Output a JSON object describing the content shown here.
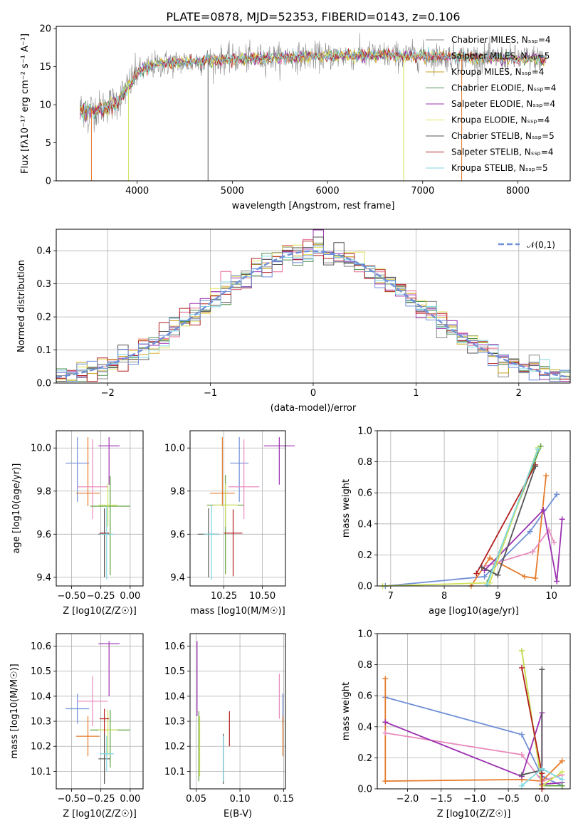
{
  "figure": {
    "title": "PLATE=0878, MJD=52353, FIBERID=0143, z=0.106"
  },
  "chart_data": [
    {
      "type": "line",
      "panel": "spectrum",
      "xlabel": "wavelength [Angstrom, rest frame]",
      "ylabel": "Flux [fλ10⁻¹⁷ erg cm⁻² s⁻¹ A⁻¹]",
      "xlim": [
        3150,
        8550
      ],
      "ylim": [
        0,
        20.3
      ],
      "xticks": [
        4000,
        5000,
        6000,
        7000,
        8000
      ],
      "yticks": [
        0,
        5,
        10,
        15,
        20
      ],
      "legend_position": "right",
      "series": [
        {
          "name": "Chabrier MILES, N_SSP=4",
          "color": "#888888"
        },
        {
          "name": "Salpeter MILES, N_SSP=5",
          "color": "#e96c93"
        },
        {
          "name": "Kroupa MILES, N_SSP=4",
          "color": "#c8a21c"
        },
        {
          "name": "Chabrier ELODIE, N_SSP=4",
          "color": "#4f8f4f"
        },
        {
          "name": "Salpeter ELODIE, N_SSP=4",
          "color": "#9b30b0"
        },
        {
          "name": "Kroupa ELODIE, N_SSP=4",
          "color": "#e2e25a"
        },
        {
          "name": "Chabrier STELIB, N_SSP=5",
          "color": "#555555"
        },
        {
          "name": "Salpeter STELIB, N_SSP=4",
          "color": "#b21f1f"
        },
        {
          "name": "Kroupa STELIB, N_SSP=5",
          "color": "#7fd7e2"
        }
      ],
      "approx_continuum": {
        "x": [
          3400,
          3600,
          3800,
          4000,
          4200,
          4500,
          5000,
          5500,
          6000,
          6500,
          7000,
          7500,
          8000,
          8300
        ],
        "y": [
          9.5,
          9.5,
          10.5,
          14.2,
          15.3,
          15.6,
          16.0,
          16.2,
          16.4,
          16.5,
          16.4,
          16.2,
          16.0,
          16.1
        ]
      }
    },
    {
      "type": "histogram",
      "panel": "residuals",
      "xlabel": "(data-model)/error",
      "ylabel": "Normed distribution",
      "xlim": [
        -2.5,
        2.5
      ],
      "ylim": [
        0,
        0.465
      ],
      "xticks": [
        -2,
        -1,
        0,
        1,
        2
      ],
      "yticks": [
        0.0,
        0.1,
        0.2,
        0.3,
        0.4
      ],
      "legend": [
        "𝒩(0,1)"
      ],
      "grid": true,
      "reference_curve": {
        "name": "𝒩(0,1)",
        "mean": 0,
        "sigma": 1,
        "color": "#6f8fd8"
      }
    },
    {
      "type": "scatter",
      "panel": "age-vs-Z",
      "xlabel": "Z [log10(Z/Z☉)]",
      "ylabel": "age  [log10(age/yr)]",
      "xlim": [
        -0.63,
        0.11
      ],
      "ylim": [
        9.36,
        10.08
      ],
      "xticks": [
        -0.5,
        -0.25,
        0.0
      ],
      "yticks": [
        9.4,
        9.6,
        9.8,
        10.0
      ],
      "grid": true,
      "points": [
        {
          "x": -0.45,
          "xerr": 0.1,
          "y": 9.93,
          "yerr_lo": 0.18,
          "yerr_hi": 0.12,
          "color": "#6f8fd8"
        },
        {
          "x": -0.36,
          "xerr": 0.1,
          "y": 9.79,
          "yerr_lo": 0.06,
          "yerr_hi": 0.26,
          "color": "#e57a2a"
        },
        {
          "x": -0.32,
          "xerr": 0.13,
          "y": 9.82,
          "yerr_lo": 0.15,
          "yerr_hi": 0.22,
          "color": "#e88bbd"
        },
        {
          "x": -0.18,
          "xerr": 0.09,
          "y": 10.01,
          "yerr_lo": 0.18,
          "yerr_hi": 0.04,
          "color": "#9b30b0"
        },
        {
          "x": -0.17,
          "xerr": 0.17,
          "y": 9.73,
          "yerr_lo": 0.32,
          "yerr_hi": 0.14,
          "color": "#5fa03a"
        },
        {
          "x": -0.19,
          "xerr": 0.08,
          "y": 9.735,
          "yerr_lo": 0.1,
          "yerr_hi": 0.1,
          "color": "#cfe25a"
        },
        {
          "x": -0.22,
          "xerr": 0.04,
          "y": 9.605,
          "yerr_lo": 0.2,
          "yerr_hi": 0.11,
          "color": "#b21f1f"
        },
        {
          "x": -0.22,
          "xerr": 0.05,
          "y": 9.6,
          "yerr_lo": 0.2,
          "yerr_hi": 0.12,
          "color": "#555555"
        },
        {
          "x": -0.2,
          "xerr": 0.06,
          "y": 9.6,
          "yerr_lo": 0.21,
          "yerr_hi": 0.13,
          "color": "#7fd7e2"
        }
      ]
    },
    {
      "type": "scatter",
      "panel": "age-vs-mass",
      "xlabel": "mass [log10(M/M☉)]",
      "ylabel": "",
      "xlim": [
        10.03,
        10.65
      ],
      "ylim": [
        9.36,
        10.08
      ],
      "xticks": [
        10.25,
        10.5
      ],
      "yticks": [
        9.4,
        9.6,
        9.8,
        10.0
      ],
      "grid": true,
      "points": [
        {
          "x": 10.35,
          "xerr": 0.06,
          "y": 9.93,
          "yerr_lo": 0.18,
          "yerr_hi": 0.12,
          "color": "#6f8fd8"
        },
        {
          "x": 10.24,
          "xerr": 0.08,
          "y": 9.79,
          "yerr_lo": 0.06,
          "yerr_hi": 0.26,
          "color": "#e57a2a"
        },
        {
          "x": 10.38,
          "xerr": 0.1,
          "y": 9.82,
          "yerr_lo": 0.15,
          "yerr_hi": 0.22,
          "color": "#e88bbd"
        },
        {
          "x": 10.61,
          "xerr": 0.1,
          "y": 10.01,
          "yerr_lo": 0.18,
          "yerr_hi": 0.04,
          "color": "#9b30b0"
        },
        {
          "x": 10.26,
          "xerr": 0.12,
          "y": 9.735,
          "yerr_lo": 0.32,
          "yerr_hi": 0.14,
          "color": "#5fa03a"
        },
        {
          "x": 10.26,
          "xerr": 0.08,
          "y": 9.735,
          "yerr_lo": 0.1,
          "yerr_hi": 0.1,
          "color": "#cfe25a"
        },
        {
          "x": 10.31,
          "xerr": 0.06,
          "y": 9.605,
          "yerr_lo": 0.2,
          "yerr_hi": 0.11,
          "color": "#b21f1f"
        },
        {
          "x": 10.15,
          "xerr": 0.07,
          "y": 9.6,
          "yerr_lo": 0.2,
          "yerr_hi": 0.12,
          "color": "#555555"
        },
        {
          "x": 10.17,
          "xerr": 0.05,
          "y": 9.6,
          "yerr_lo": 0.21,
          "yerr_hi": 0.13,
          "color": "#7fd7e2"
        }
      ]
    },
    {
      "type": "line",
      "panel": "mass-weight-vs-age",
      "xlabel": "age  [log10(age/yr)]",
      "ylabel": "mass weight",
      "xlim": [
        6.75,
        10.35
      ],
      "ylim": [
        0,
        1.0
      ],
      "xticks": [
        7,
        8,
        9,
        10
      ],
      "yticks": [
        0.0,
        0.2,
        0.4,
        0.6,
        0.8,
        1.0
      ],
      "grid": true,
      "series": [
        {
          "color": "#6f8fd8",
          "x": [
            6.9,
            8.75,
            9.6,
            10.1
          ],
          "y": [
            0.0,
            0.06,
            0.35,
            0.59
          ]
        },
        {
          "color": "#e57a2a",
          "x": [
            8.5,
            8.85,
            9.5,
            9.7,
            9.9
          ],
          "y": [
            0.0,
            0.18,
            0.06,
            0.05,
            0.71
          ]
        },
        {
          "color": "#e88bbd",
          "x": [
            8.7,
            9.65,
            9.95,
            10.05
          ],
          "y": [
            0.12,
            0.22,
            0.36,
            0.28
          ]
        },
        {
          "color": "#9b30b0",
          "x": [
            8.75,
            9.85,
            10.1,
            10.2
          ],
          "y": [
            0.1,
            0.49,
            0.03,
            0.43
          ]
        },
        {
          "color": "#5fa03a",
          "x": [
            8.8,
            9.8
          ],
          "y": [
            0.02,
            0.9
          ]
        },
        {
          "color": "#cfe25a",
          "x": [
            6.85,
            8.85,
            9.75
          ],
          "y": [
            0.0,
            0.02,
            0.89
          ]
        },
        {
          "color": "#b21f1f",
          "x": [
            8.6,
            9.7
          ],
          "y": [
            0.08,
            0.78
          ]
        },
        {
          "color": "#555555",
          "x": [
            8.7,
            9.0,
            9.7
          ],
          "y": [
            0.12,
            0.07,
            0.77
          ]
        },
        {
          "color": "#7fd7e2",
          "x": [
            8.8,
            9.75
          ],
          "y": [
            0.01,
            0.88
          ]
        }
      ]
    },
    {
      "type": "scatter",
      "panel": "mass-vs-Z",
      "xlabel": "Z [log10(Z/Z☉)]",
      "ylabel": "mass [log10(M/M☉)]",
      "xlim": [
        -0.63,
        0.11
      ],
      "ylim": [
        10.03,
        10.65
      ],
      "xticks": [
        -0.5,
        -0.25,
        0.0
      ],
      "yticks": [
        10.1,
        10.2,
        10.3,
        10.4,
        10.5,
        10.6
      ],
      "grid": true,
      "points": [
        {
          "x": -0.45,
          "xerr": 0.1,
          "y": 10.35,
          "yerr_lo": 0.06,
          "yerr_hi": 0.06,
          "color": "#6f8fd8"
        },
        {
          "x": -0.36,
          "xerr": 0.1,
          "y": 10.24,
          "yerr_lo": 0.08,
          "yerr_hi": 0.08,
          "color": "#e57a2a"
        },
        {
          "x": -0.32,
          "xerr": 0.13,
          "y": 10.38,
          "yerr_lo": 0.1,
          "yerr_hi": 0.1,
          "color": "#e88bbd"
        },
        {
          "x": -0.18,
          "xerr": 0.09,
          "y": 10.61,
          "yerr_lo": 0.21,
          "yerr_hi": 0.01,
          "color": "#9b30b0"
        },
        {
          "x": -0.17,
          "xerr": 0.17,
          "y": 10.265,
          "yerr_lo": 0.15,
          "yerr_hi": 0.08,
          "color": "#5fa03a"
        },
        {
          "x": -0.19,
          "xerr": 0.08,
          "y": 10.265,
          "yerr_lo": 0.1,
          "yerr_hi": 0.08,
          "color": "#cfe25a"
        },
        {
          "x": -0.22,
          "xerr": 0.04,
          "y": 10.31,
          "yerr_lo": 0.25,
          "yerr_hi": 0.04,
          "color": "#b21f1f"
        },
        {
          "x": -0.22,
          "xerr": 0.05,
          "y": 10.15,
          "yerr_lo": 0.1,
          "yerr_hi": 0.1,
          "color": "#555555"
        },
        {
          "x": -0.2,
          "xerr": 0.06,
          "y": 10.17,
          "yerr_lo": 0.07,
          "yerr_hi": 0.07,
          "color": "#7fd7e2"
        }
      ]
    },
    {
      "type": "scatter",
      "panel": "mass-vs-EBV",
      "xlabel": "E(B-V)",
      "ylabel": "",
      "xlim": [
        0.043,
        0.152
      ],
      "ylim": [
        10.03,
        10.65
      ],
      "xticks": [
        0.05,
        0.1,
        0.15
      ],
      "yticks": [
        10.1,
        10.2,
        10.3,
        10.4,
        10.5,
        10.6
      ],
      "grid": true,
      "points": [
        {
          "x": 0.149,
          "y": 10.35,
          "yerr_lo": 0.06,
          "yerr_hi": 0.06,
          "color": "#6f8fd8"
        },
        {
          "x": 0.149,
          "y": 10.24,
          "yerr_lo": 0.08,
          "yerr_hi": 0.08,
          "color": "#e57a2a"
        },
        {
          "x": 0.145,
          "y": 10.4,
          "yerr_lo": 0.09,
          "yerr_hi": 0.09,
          "color": "#e88bbd"
        },
        {
          "x": 0.051,
          "y": 10.47,
          "yerr_lo": 0.15,
          "yerr_hi": 0.15,
          "color": "#9b30b0"
        },
        {
          "x": 0.053,
          "y": 10.2,
          "yerr_lo": 0.14,
          "yerr_hi": 0.14,
          "color": "#5fa03a"
        },
        {
          "x": 0.054,
          "y": 10.2,
          "yerr_lo": 0.12,
          "yerr_hi": 0.12,
          "color": "#cfe25a"
        },
        {
          "x": 0.088,
          "y": 10.27,
          "yerr_lo": 0.07,
          "yerr_hi": 0.07,
          "color": "#b21f1f"
        },
        {
          "x": 0.081,
          "y": 10.15,
          "yerr_lo": 0.1,
          "yerr_hi": 0.1,
          "color": "#555555"
        },
        {
          "x": 0.081,
          "y": 10.15,
          "yerr_lo": 0.09,
          "yerr_hi": 0.09,
          "color": "#7fd7e2"
        }
      ]
    },
    {
      "type": "line",
      "panel": "mass-weight-vs-Z",
      "xlabel": "Z [log10(Z/Z☉)]",
      "ylabel": "mass weight",
      "xlim": [
        -2.45,
        0.42
      ],
      "ylim": [
        0,
        1.0
      ],
      "xticks": [
        -2.0,
        -1.5,
        -1.0,
        -0.5,
        0.0
      ],
      "yticks": [
        0.0,
        0.2,
        0.4,
        0.6,
        0.8,
        1.0
      ],
      "grid": true,
      "series": [
        {
          "color": "#6f8fd8",
          "x": [
            -2.33,
            -0.3,
            0.0,
            0.3
          ],
          "y": [
            0.59,
            0.35,
            0.08,
            0.02
          ]
        },
        {
          "color": "#e57a2a",
          "x": [
            -2.33,
            -2.33,
            -0.3,
            0.0,
            0.3
          ],
          "y": [
            0.71,
            0.05,
            0.06,
            0.05,
            0.18
          ]
        },
        {
          "color": "#e88bbd",
          "x": [
            -2.33,
            -0.3,
            0.0,
            0.3
          ],
          "y": [
            0.36,
            0.22,
            0.05,
            0.09
          ]
        },
        {
          "color": "#9b30b0",
          "x": [
            -2.33,
            -0.3,
            0.0,
            0.0,
            0.3
          ],
          "y": [
            0.43,
            0.08,
            0.49,
            0.03,
            0.04
          ]
        },
        {
          "color": "#5fa03a",
          "x": [
            -0.3,
            0.0,
            0.3
          ],
          "y": [
            0.89,
            0.02,
            0.02
          ]
        },
        {
          "color": "#cfe25a",
          "x": [
            -0.3,
            0.0,
            0.3
          ],
          "y": [
            0.89,
            0.02,
            0.11
          ]
        },
        {
          "color": "#b21f1f",
          "x": [
            -0.3,
            0.0,
            0.0
          ],
          "y": [
            0.78,
            0.1,
            0.0
          ]
        },
        {
          "color": "#555555",
          "x": [
            -0.3,
            0.0,
            0.0
          ],
          "y": [
            0.09,
            0.12,
            0.77
          ]
        },
        {
          "color": "#7fd7e2",
          "x": [
            -0.3,
            0.0,
            0.3
          ],
          "y": [
            0.02,
            0.13,
            0.06
          ]
        }
      ]
    }
  ]
}
